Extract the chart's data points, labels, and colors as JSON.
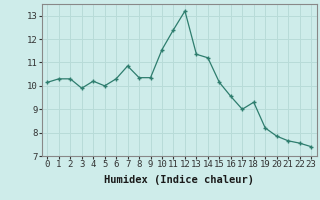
{
  "xlabel": "Humidex (Indice chaleur)",
  "x": [
    0,
    1,
    2,
    3,
    4,
    5,
    6,
    7,
    8,
    9,
    10,
    11,
    12,
    13,
    14,
    15,
    16,
    17,
    18,
    19,
    20,
    21,
    22,
    23
  ],
  "y": [
    10.15,
    10.3,
    10.3,
    9.9,
    10.2,
    10.0,
    10.3,
    10.85,
    10.35,
    10.35,
    11.55,
    12.4,
    13.2,
    11.35,
    11.2,
    10.15,
    9.55,
    9.0,
    9.3,
    8.2,
    7.85,
    7.65,
    7.55,
    7.4
  ],
  "ylim": [
    7,
    13.5
  ],
  "xlim": [
    -0.5,
    23.5
  ],
  "yticks": [
    7,
    8,
    9,
    10,
    11,
    12,
    13
  ],
  "xticks": [
    0,
    1,
    2,
    3,
    4,
    5,
    6,
    7,
    8,
    9,
    10,
    11,
    12,
    13,
    14,
    15,
    16,
    17,
    18,
    19,
    20,
    21,
    22,
    23
  ],
  "line_color": "#2e7d6e",
  "marker": "+",
  "bg_color": "#ceecea",
  "grid_color": "#b8dbd8",
  "tick_fontsize": 6.5,
  "xlabel_fontsize": 7.5
}
